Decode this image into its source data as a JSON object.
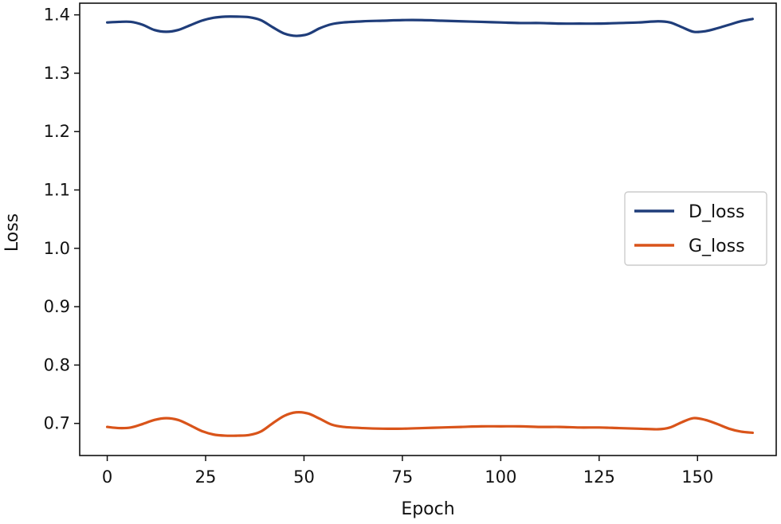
{
  "chart_data": {
    "type": "line",
    "title": "",
    "xlabel": "Epoch",
    "ylabel": "Loss",
    "xlim": [
      -7,
      170
    ],
    "ylim": [
      0.645,
      1.42
    ],
    "xticks": [
      0,
      25,
      50,
      75,
      100,
      125,
      150
    ],
    "yticks": [
      0.7,
      0.8,
      0.9,
      1.0,
      1.1,
      1.2,
      1.3,
      1.4
    ],
    "ytick_labels": [
      "0.7",
      "0.8",
      "0.9",
      "1.0",
      "1.1",
      "1.2",
      "1.3",
      "1.4"
    ],
    "grid": false,
    "legend_position": "center-right",
    "series": [
      {
        "name": "D_loss",
        "color": "#1f3d7a",
        "x": [
          0,
          3,
          6,
          9,
          12,
          15,
          18,
          21,
          24,
          27,
          30,
          33,
          36,
          39,
          42,
          45,
          48,
          51,
          54,
          57,
          60,
          65,
          70,
          75,
          80,
          85,
          90,
          95,
          100,
          105,
          110,
          115,
          120,
          125,
          130,
          135,
          140,
          143,
          146,
          149,
          152,
          155,
          158,
          161,
          164
        ],
        "y": [
          1.387,
          1.388,
          1.388,
          1.383,
          1.374,
          1.371,
          1.374,
          1.382,
          1.39,
          1.395,
          1.397,
          1.397,
          1.396,
          1.391,
          1.379,
          1.368,
          1.364,
          1.367,
          1.377,
          1.384,
          1.387,
          1.389,
          1.39,
          1.391,
          1.391,
          1.39,
          1.389,
          1.388,
          1.387,
          1.386,
          1.386,
          1.385,
          1.385,
          1.385,
          1.386,
          1.387,
          1.389,
          1.387,
          1.379,
          1.371,
          1.372,
          1.377,
          1.383,
          1.389,
          1.393
        ]
      },
      {
        "name": "G_loss",
        "color": "#d9541a",
        "x": [
          0,
          3,
          6,
          9,
          12,
          15,
          18,
          21,
          24,
          27,
          30,
          33,
          36,
          39,
          42,
          45,
          48,
          51,
          54,
          57,
          60,
          65,
          70,
          75,
          80,
          85,
          90,
          95,
          100,
          105,
          110,
          115,
          120,
          125,
          130,
          135,
          140,
          143,
          146,
          149,
          152,
          155,
          158,
          161,
          164
        ],
        "y": [
          0.694,
          0.692,
          0.693,
          0.699,
          0.706,
          0.709,
          0.706,
          0.697,
          0.687,
          0.681,
          0.679,
          0.679,
          0.68,
          0.686,
          0.7,
          0.713,
          0.719,
          0.717,
          0.708,
          0.698,
          0.694,
          0.692,
          0.691,
          0.691,
          0.692,
          0.693,
          0.694,
          0.695,
          0.695,
          0.695,
          0.694,
          0.694,
          0.693,
          0.693,
          0.692,
          0.691,
          0.69,
          0.693,
          0.702,
          0.709,
          0.706,
          0.699,
          0.691,
          0.686,
          0.684
        ]
      }
    ]
  }
}
